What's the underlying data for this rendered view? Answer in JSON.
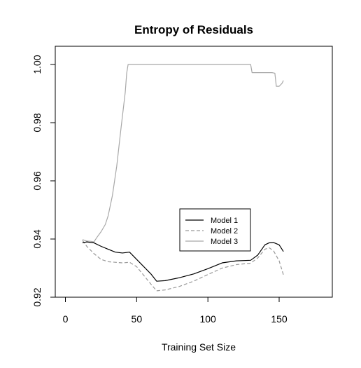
{
  "chart_data": {
    "type": "line",
    "title": "Entropy of Residuals",
    "xlabel": "Training Set Size",
    "ylabel": "",
    "xlim": [
      0,
      180
    ],
    "ylim": [
      0.92,
      1.0
    ],
    "xticks": [
      0,
      50,
      100,
      150
    ],
    "yticks": [
      0.92,
      0.94,
      0.96,
      0.98,
      1.0
    ],
    "xtick_labels": [
      "0",
      "50",
      "100",
      "150"
    ],
    "ytick_labels": [
      "0.92",
      "0.94",
      "0.96",
      "0.98",
      "1.00"
    ],
    "grid": false,
    "legend_position": "center-right",
    "series": [
      {
        "name": "Model 1",
        "color": "#000000",
        "dash": "solid",
        "x": [
          12,
          15,
          20,
          25,
          30,
          35,
          40,
          45,
          50,
          55,
          60,
          64,
          70,
          80,
          90,
          100,
          110,
          120,
          130,
          135,
          140,
          143,
          146,
          150,
          153
        ],
        "y": [
          0.9387,
          0.939,
          0.9387,
          0.9375,
          0.9365,
          0.9355,
          0.9352,
          0.9355,
          0.933,
          0.9305,
          0.928,
          0.9255,
          0.9257,
          0.9267,
          0.928,
          0.9298,
          0.9318,
          0.9325,
          0.9327,
          0.9345,
          0.938,
          0.9387,
          0.9388,
          0.938,
          0.9357
        ]
      },
      {
        "name": "Model 2",
        "color": "#999999",
        "dash": "dashed",
        "x": [
          12,
          15,
          20,
          25,
          30,
          35,
          40,
          45,
          50,
          55,
          60,
          64,
          70,
          80,
          90,
          100,
          110,
          120,
          130,
          135,
          140,
          143,
          146,
          150,
          153
        ],
        "y": [
          0.9395,
          0.9375,
          0.935,
          0.933,
          0.9322,
          0.932,
          0.9318,
          0.932,
          0.9305,
          0.9275,
          0.9245,
          0.9222,
          0.9225,
          0.9237,
          0.9255,
          0.9278,
          0.93,
          0.9312,
          0.9317,
          0.9335,
          0.9365,
          0.937,
          0.936,
          0.9325,
          0.9277
        ]
      },
      {
        "name": "Model 3",
        "color": "#a8a8a8",
        "dash": "solid",
        "x": [
          12,
          15,
          18,
          20,
          22,
          25,
          28,
          30,
          33,
          36,
          39,
          42,
          43,
          44,
          50,
          60,
          80,
          100,
          120,
          128,
          130,
          131,
          135,
          140,
          145,
          147,
          148,
          150,
          152,
          153
        ],
        "y": [
          0.9398,
          0.9393,
          0.9392,
          0.939,
          0.9405,
          0.9425,
          0.945,
          0.948,
          0.955,
          0.965,
          0.978,
          0.9905,
          0.997,
          1.0,
          1.0,
          1.0,
          1.0,
          1.0,
          1.0,
          1.0,
          1.0,
          0.9972,
          0.9972,
          0.9972,
          0.9972,
          0.997,
          0.9925,
          0.9925,
          0.9935,
          0.9945
        ]
      }
    ]
  }
}
